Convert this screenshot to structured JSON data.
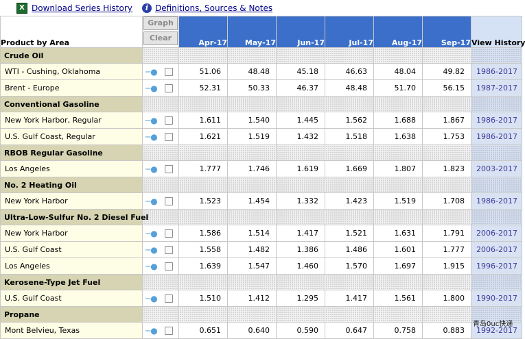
{
  "toolbar": {
    "download_label": "Download Series History",
    "definitions_label": "Definitions, Sources & Notes"
  },
  "header": {
    "product_label": "Product by Area",
    "graph_label": "Graph",
    "clear_label": "Clear",
    "months": [
      "Apr-17",
      "May-17",
      "Jun-17",
      "Jul-17",
      "Aug-17",
      "Sep-17"
    ],
    "view_history_label": "View History"
  },
  "sections": [
    {
      "category": "Crude Oil",
      "rows": [
        {
          "name": "WTI - Cushing, Oklahoma",
          "values": [
            "51.06",
            "48.48",
            "45.18",
            "46.63",
            "48.04",
            "49.82"
          ],
          "history": "1986-2017"
        },
        {
          "name": "Brent - Europe",
          "values": [
            "52.31",
            "50.33",
            "46.37",
            "48.48",
            "51.70",
            "56.15"
          ],
          "history": "1987-2017"
        }
      ]
    },
    {
      "category": "Conventional Gasoline",
      "rows": [
        {
          "name": "New York Harbor, Regular",
          "values": [
            "1.611",
            "1.540",
            "1.445",
            "1.562",
            "1.688",
            "1.867"
          ],
          "history": "1986-2017"
        },
        {
          "name": "U.S. Gulf Coast, Regular",
          "values": [
            "1.621",
            "1.519",
            "1.432",
            "1.518",
            "1.638",
            "1.753"
          ],
          "history": "1986-2017"
        }
      ]
    },
    {
      "category": "RBOB Regular Gasoline",
      "rows": [
        {
          "name": "Los Angeles",
          "values": [
            "1.777",
            "1.746",
            "1.619",
            "1.669",
            "1.807",
            "1.823"
          ],
          "history": "2003-2017"
        }
      ]
    },
    {
      "category": "No. 2 Heating Oil",
      "rows": [
        {
          "name": "New York Harbor",
          "values": [
            "1.523",
            "1.454",
            "1.332",
            "1.423",
            "1.519",
            "1.708"
          ],
          "history": "1986-2017"
        }
      ]
    },
    {
      "category": "Ultra-Low-Sulfur No. 2 Diesel Fuel",
      "rows": [
        {
          "name": "New York Harbor",
          "values": [
            "1.586",
            "1.514",
            "1.417",
            "1.521",
            "1.631",
            "1.791"
          ],
          "history": "2006-2017"
        },
        {
          "name": "U.S. Gulf Coast",
          "values": [
            "1.558",
            "1.482",
            "1.386",
            "1.486",
            "1.601",
            "1.777"
          ],
          "history": "2006-2017"
        },
        {
          "name": "Los Angeles",
          "values": [
            "1.639",
            "1.547",
            "1.460",
            "1.570",
            "1.697",
            "1.915"
          ],
          "history": "1996-2017"
        }
      ]
    },
    {
      "category": "Kerosene-Type Jet Fuel",
      "rows": [
        {
          "name": "U.S. Gulf Coast",
          "values": [
            "1.510",
            "1.412",
            "1.295",
            "1.417",
            "1.561",
            "1.800"
          ],
          "history": "1990-2017"
        }
      ]
    },
    {
      "category": "Propane",
      "rows": [
        {
          "name": "Mont Belvieu, Texas",
          "values": [
            "0.651",
            "0.640",
            "0.590",
            "0.647",
            "0.758",
            "0.883"
          ],
          "history": "1992-2017"
        }
      ]
    }
  ],
  "icons": {
    "excel": "excel-icon",
    "info": "info-icon",
    "key": "key-icon"
  },
  "colors": {
    "month_header": "#3b6fca",
    "category_bg": "#d6d4b2",
    "name_bg": "#fefde6",
    "history_bg": "#d8e2f2",
    "link": "#00008b"
  },
  "watermark": "青岛0uc快递"
}
